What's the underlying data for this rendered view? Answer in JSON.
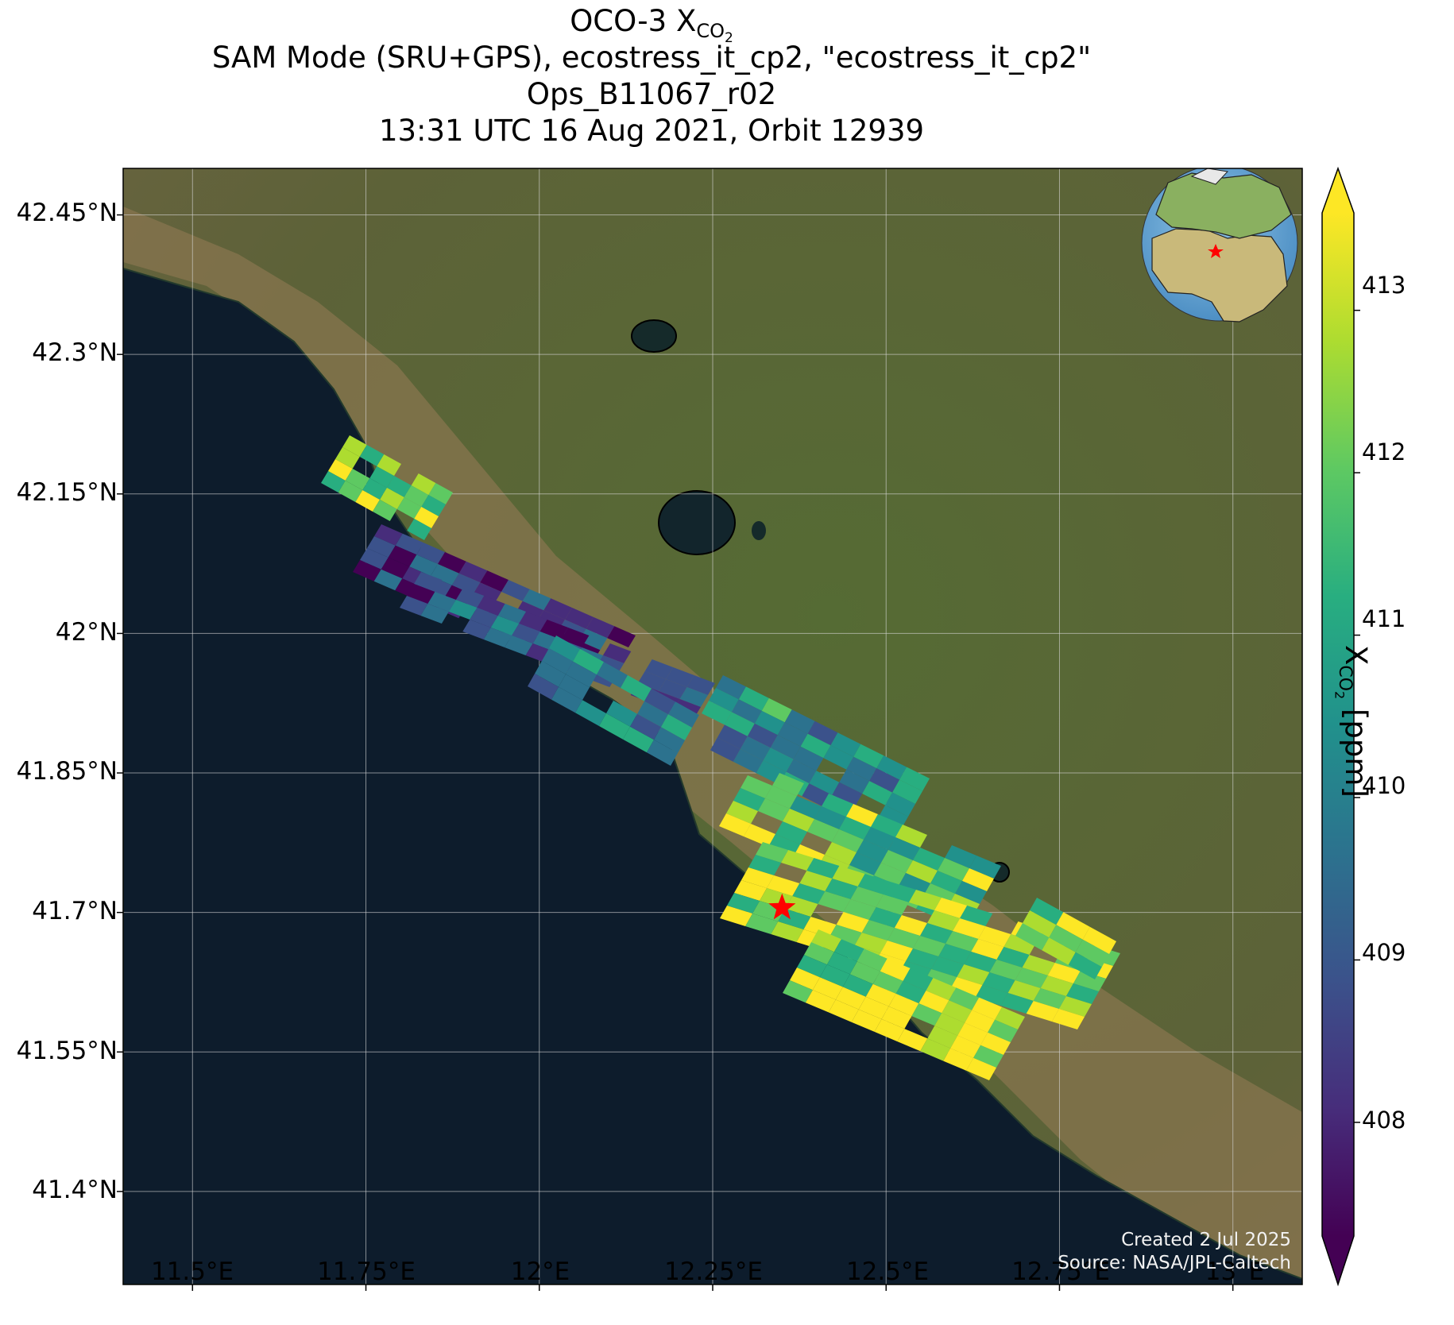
{
  "title": {
    "line1_prefix": "OCO-3 X",
    "line1_sub": "CO",
    "line1_subsub": "2",
    "line2": "SAM Mode (SRU+GPS), ecostress_it_cp2, \"ecostress_it_cp2\"",
    "line3": "Ops_B11067_r02",
    "line4": "13:31 UTC 16 Aug 2021, Orbit 12939"
  },
  "map": {
    "lat_ticks": [
      "42.45°N",
      "42.3°N",
      "42.15°N",
      "42°N",
      "41.85°N",
      "41.7°N",
      "41.55°N",
      "41.4°N"
    ],
    "lon_ticks": [
      "11.5°E",
      "11.75°E",
      "12°E",
      "12.25°E",
      "12.5°E",
      "12.75°E",
      "13°E"
    ],
    "lat_values": [
      42.45,
      42.3,
      42.15,
      42.0,
      41.85,
      41.7,
      41.55,
      41.4
    ],
    "lon_values": [
      11.5,
      11.75,
      12.0,
      12.25,
      12.5,
      12.75,
      13.0
    ],
    "lon_range": [
      11.4,
      13.1
    ],
    "lat_range": [
      41.3,
      42.5
    ],
    "target_marker": {
      "lon": 12.35,
      "lat": 41.705,
      "color": "#ff0000",
      "icon": "star-icon"
    },
    "colors": {
      "sea": "#0d1c2c",
      "land": "#6b6a40",
      "marker": "#ff0000"
    }
  },
  "colorbar": {
    "ticks": [
      "408",
      "409",
      "410",
      "411",
      "412",
      "413"
    ],
    "tick_values": [
      408,
      409,
      410,
      411,
      412,
      413
    ],
    "range": [
      407.3,
      413.6
    ],
    "label_prefix": "X",
    "label_sub": "CO",
    "label_subsub": "2",
    "label_suffix": " [ppm]",
    "colormap": "viridis"
  },
  "credits": {
    "created": "Created 2 Jul 2025",
    "source": "Source: NASA/JPL-Caltech"
  },
  "inset": {
    "description_icon": "globe-icon",
    "marker_color": "#ff0000"
  }
}
